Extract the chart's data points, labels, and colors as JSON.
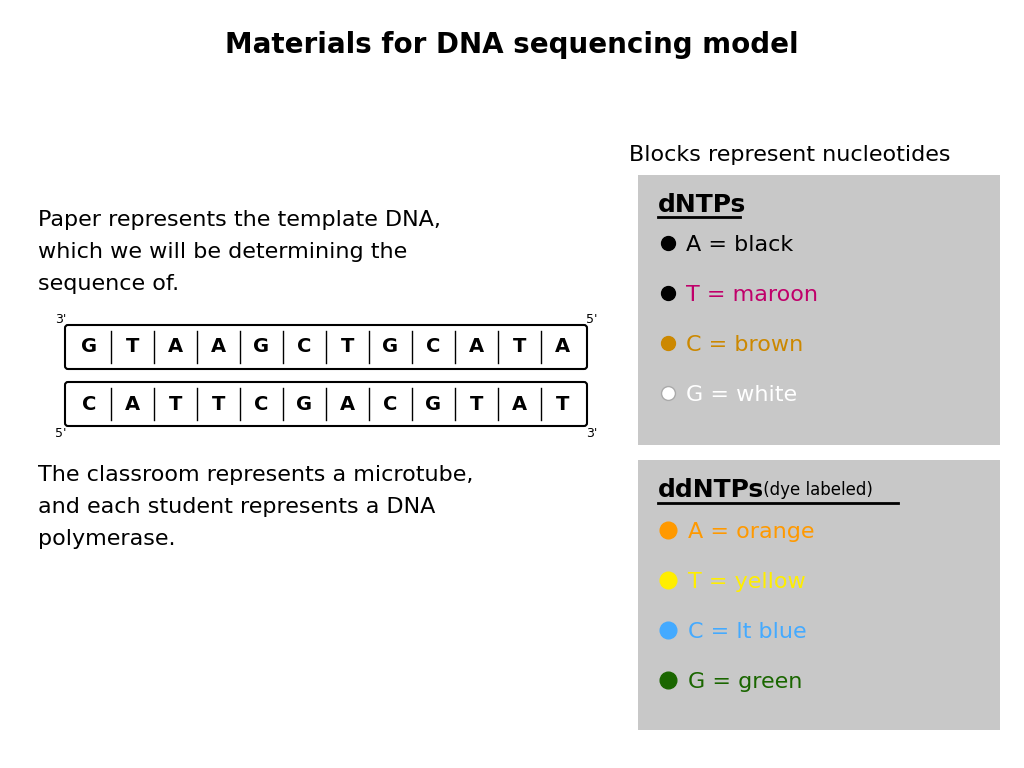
{
  "title": "Materials for DNA sequencing model",
  "title_fontsize": 20,
  "bg_color": "#ffffff",
  "text_left_1": "Paper represents the template DNA,",
  "text_left_2": "which we will be determining the",
  "text_left_3": "sequence of.",
  "text_left_4": "The classroom represents a microtube,",
  "text_left_5": "and each student represents a DNA",
  "text_left_6": "polymerase.",
  "blocks_title": "Blocks represent nucleotides",
  "strand1": [
    "G",
    "T",
    "A",
    "A",
    "G",
    "C",
    "T",
    "G",
    "C",
    "A",
    "T",
    "A"
  ],
  "strand2": [
    "C",
    "A",
    "T",
    "T",
    "C",
    "G",
    "A",
    "C",
    "G",
    "T",
    "A",
    "T"
  ],
  "strand1_label_left": "3'",
  "strand1_label_right": "5'",
  "strand2_label_left": "5'",
  "strand2_label_right": "3'",
  "box_bg": "#c8c8c8",
  "dntps_title": "dNTPs",
  "dntps": [
    {
      "letter": "A",
      "text": " = black",
      "bullet_color": "#000000",
      "text_color": "#000000"
    },
    {
      "letter": "T",
      "text": " = maroon",
      "bullet_color": "#000000",
      "text_color": "#c0006a"
    },
    {
      "letter": "C",
      "text": " = brown",
      "bullet_color": "#cc8800",
      "text_color": "#cc8800"
    },
    {
      "letter": "G",
      "text": " = white",
      "bullet_color": "#ffffff",
      "text_color": "#ffffff"
    }
  ],
  "ddntps_title": "ddNTPs",
  "ddntps_subtitle": " (dye labeled)",
  "ddntps": [
    {
      "letter": "A",
      "text": " = orange",
      "bullet_color": "#ff9900",
      "text_color": "#ff9900"
    },
    {
      "letter": "T",
      "text": " = yellow",
      "bullet_color": "#ffee00",
      "text_color": "#ffee00"
    },
    {
      "letter": "C",
      "text": " = lt blue",
      "bullet_color": "#44aaff",
      "text_color": "#44aaff"
    },
    {
      "letter": "G",
      "text": " = green",
      "bullet_color": "#1a6600",
      "text_color": "#1a6600"
    }
  ]
}
